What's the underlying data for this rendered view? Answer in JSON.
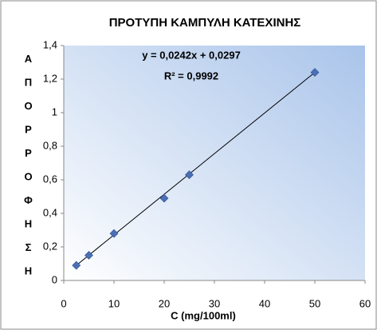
{
  "chart_data": {
    "type": "scatter",
    "title": "ΠΡΟΤΥΠΗ ΚΑΜΠΥΛΗ ΚΑΤΕΧΙΝΗΣ",
    "x_label": "C (mg/100ml)",
    "y_label": "ΑΠΟΡΡΟΦΗΣΗ",
    "annotations": [
      "y = 0,0242x + 0,0297",
      "R² = 0,9992"
    ],
    "x": [
      2.5,
      5,
      10,
      20,
      25,
      50
    ],
    "values": [
      0.09,
      0.15,
      0.28,
      0.49,
      0.63,
      1.24
    ],
    "color": "#4a6fb5",
    "trendline": {
      "x": [
        2.5,
        50
      ],
      "values": [
        0.09,
        1.24
      ],
      "color": "#000000"
    },
    "xlim": [
      0,
      60
    ],
    "xticks": [
      0,
      10,
      20,
      30,
      40,
      50,
      60
    ],
    "ylim": [
      0,
      1.4
    ],
    "yticks": [
      0,
      {
        "value": 0.2,
        "label": "0,2"
      },
      {
        "value": 0.4,
        "label": "0,4"
      },
      {
        "value": 0.6,
        "label": "0,6"
      },
      {
        "value": 0.8,
        "label": "0,8"
      },
      {
        "value": 1,
        "label": "1"
      },
      {
        "value": 1.2,
        "label": "1,2"
      },
      {
        "value": 1.4,
        "label": "1,4"
      }
    ]
  }
}
